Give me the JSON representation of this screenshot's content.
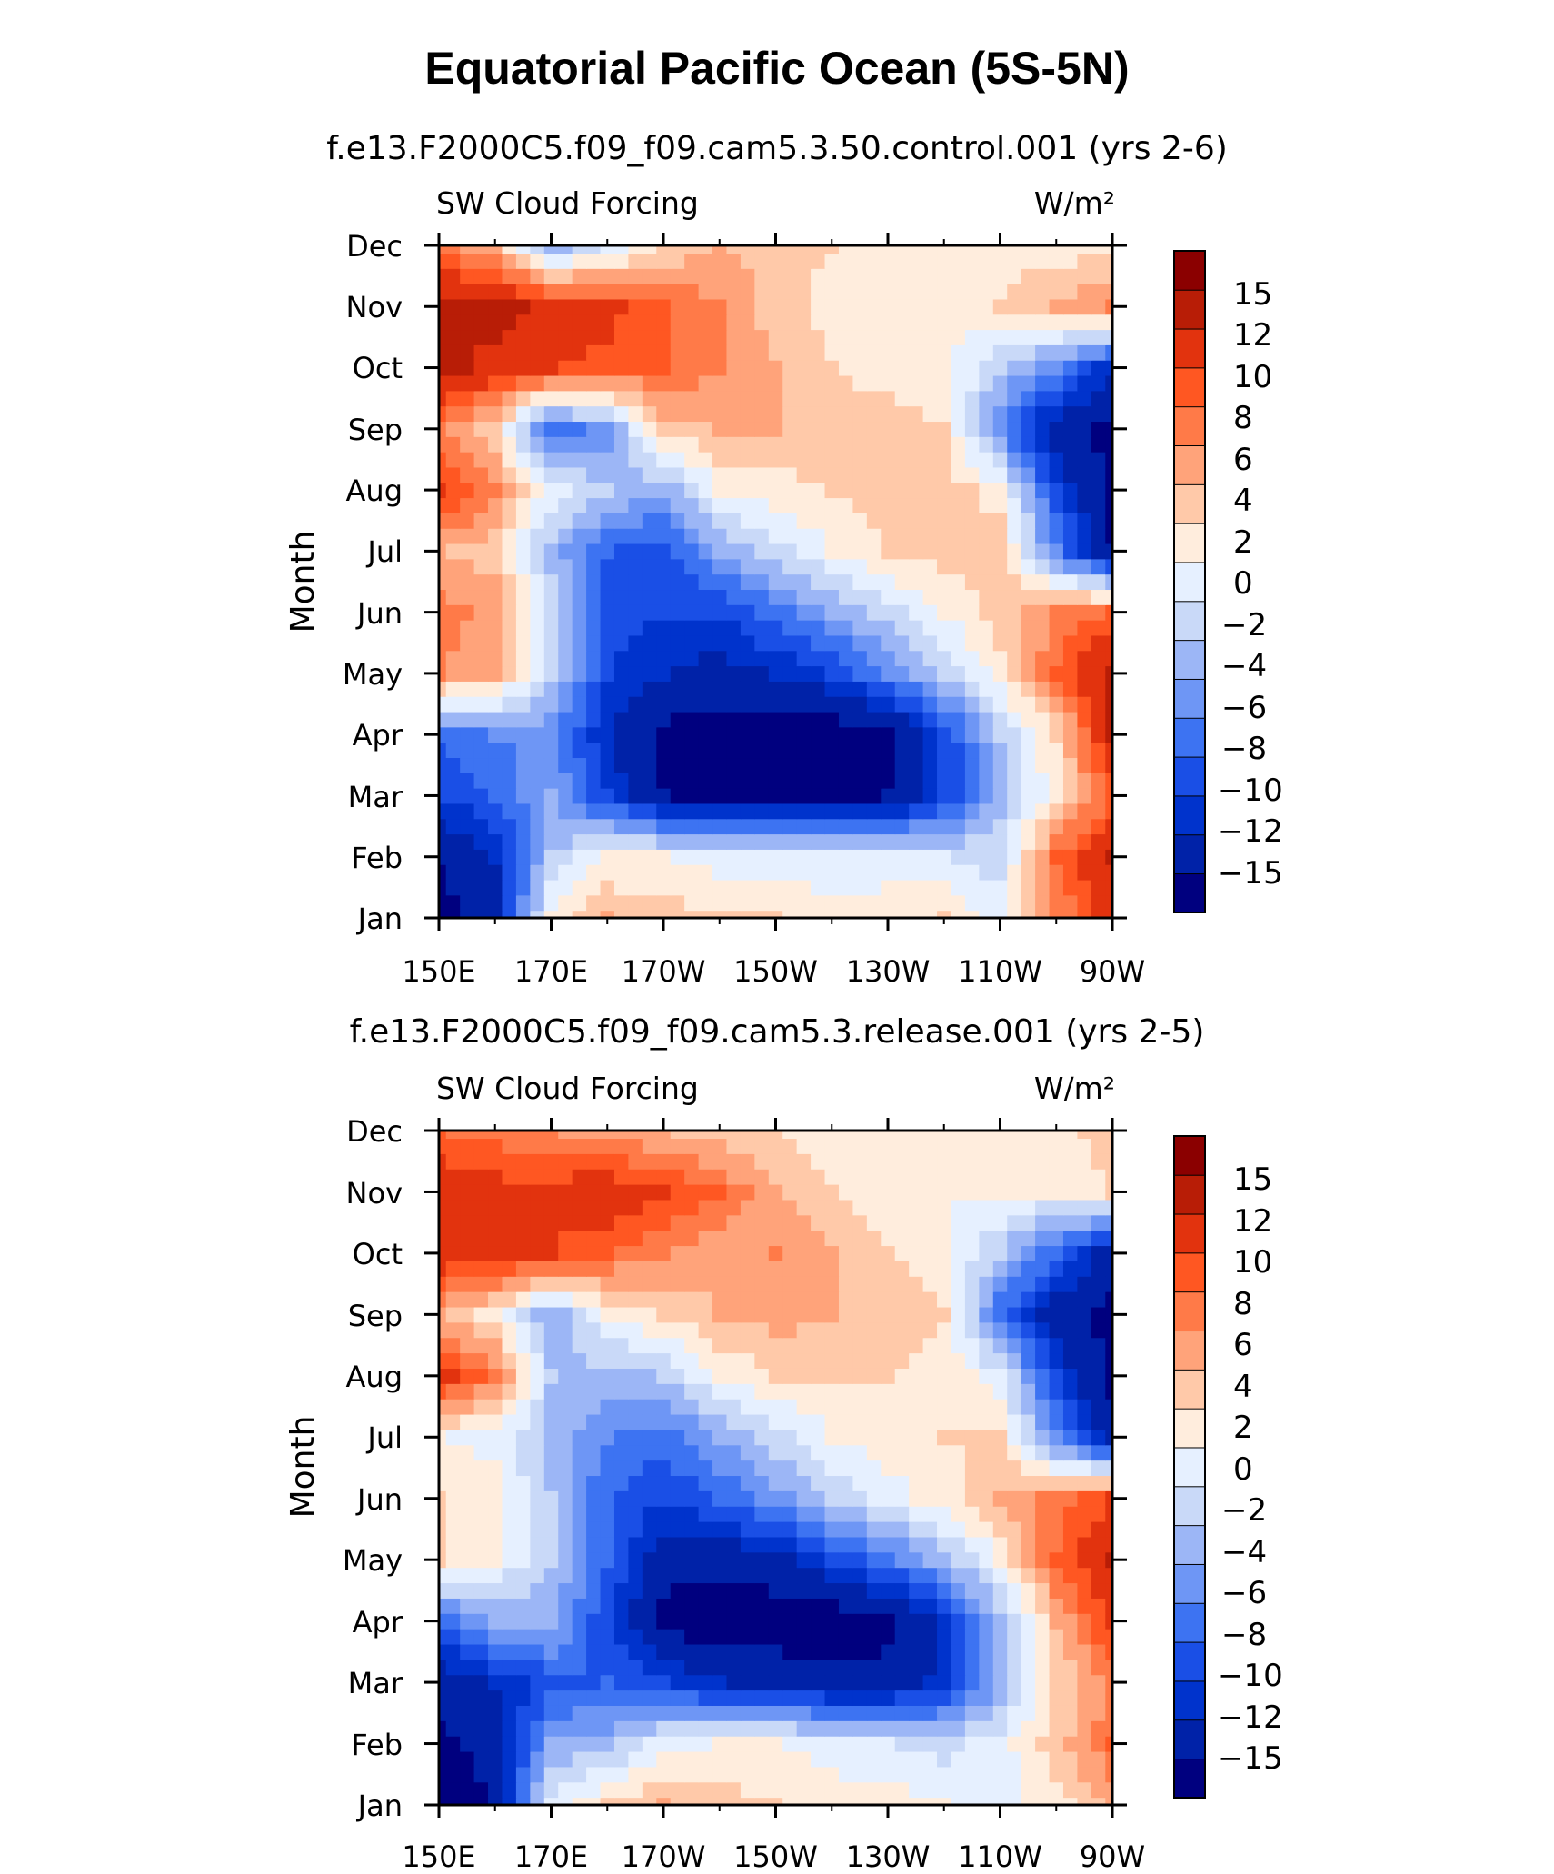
{
  "title": "Equatorial Pacific Ocean (5S-5N)",
  "colors": {
    "levels": [
      "#00007F",
      "#0022A8",
      "#0033CC",
      "#1A4FE6",
      "#3D73F2",
      "#6E96F5",
      "#9CB6F6",
      "#C9D9F8",
      "#E6F0FF",
      "#FFEDDD",
      "#FFC9A9",
      "#FFA37A",
      "#FF7A48",
      "#FF5722",
      "#E2330E",
      "#B81D06",
      "#8B0000"
    ],
    "axis": "#000000"
  },
  "chart_data": [
    {
      "type": "heatmap",
      "subtitle": "f.e13.F2000C5.f09_f09.cam5.3.50.control.001 (yrs 2-6)",
      "left_label": "SW Cloud Forcing",
      "right_label": "W/m²",
      "ylabel": "Month",
      "x_ticks": [
        "150E",
        "170E",
        "170W",
        "150W",
        "130W",
        "110W",
        "90W"
      ],
      "y_ticks": [
        "Jan",
        "Feb",
        "Mar",
        "Apr",
        "May",
        "Jun",
        "Jul",
        "Aug",
        "Sep",
        "Oct",
        "Nov",
        "Dec"
      ],
      "colorbar_labels": [
        "15",
        "12",
        "10",
        "8",
        "6",
        "4",
        "2",
        "0",
        "−2",
        "−4",
        "−6",
        "−8",
        "−10",
        "−12",
        "−15"
      ],
      "longitudes": [
        150,
        160,
        170,
        180,
        190,
        200,
        210,
        220,
        230,
        240,
        250,
        260,
        270
      ],
      "values": [
        [
          -16,
          -14,
          3,
          6,
          5,
          4,
          4,
          3,
          3,
          4,
          1,
          8,
          14
        ],
        [
          -15,
          -12,
          -2,
          2,
          2,
          1,
          1,
          0,
          1,
          0,
          -1,
          10,
          15
        ],
        [
          -10,
          -8,
          -4,
          -10,
          -15,
          -16,
          -16,
          -16,
          -15,
          -10,
          -3,
          3,
          10
        ],
        [
          -8,
          -6,
          -5,
          -12,
          -16,
          -17,
          -17,
          -17,
          -16,
          -10,
          -2,
          4,
          15
        ],
        [
          8,
          6,
          -2,
          -10,
          -12,
          -13,
          -12,
          -10,
          -6,
          -2,
          3,
          10,
          16
        ],
        [
          9,
          7,
          -1,
          -9,
          -10,
          -10,
          -7,
          -4,
          -1,
          2,
          5,
          8,
          10
        ],
        [
          6,
          5,
          -3,
          -8,
          -9,
          -4,
          -1,
          2,
          4,
          5,
          5,
          -6,
          -15
        ],
        [
          13,
          8,
          1,
          -2,
          -4,
          2,
          3,
          4,
          5,
          5,
          3,
          -10,
          -16
        ],
        [
          8,
          4,
          -8,
          -5,
          5,
          6,
          6,
          5,
          5,
          4,
          -6,
          -14,
          -16
        ],
        [
          16,
          14,
          12,
          11,
          10,
          8,
          6,
          4,
          3,
          3,
          -2,
          -6,
          -12
        ],
        [
          16,
          16,
          14,
          13,
          10,
          8,
          5,
          3,
          2,
          2,
          4,
          6,
          8
        ],
        [
          9,
          6,
          -3,
          0,
          4,
          6,
          5,
          4,
          3,
          3,
          3,
          3,
          3
        ]
      ]
    },
    {
      "type": "heatmap",
      "subtitle": "f.e13.F2000C5.f09_f09.cam5.3.release.001 (yrs 2-5)",
      "left_label": "SW Cloud Forcing",
      "right_label": "W/m²",
      "ylabel": "Month",
      "x_ticks": [
        "150E",
        "170E",
        "170W",
        "150W",
        "130W",
        "110W",
        "90W"
      ],
      "y_ticks": [
        "Jan",
        "Feb",
        "Mar",
        "Apr",
        "May",
        "Jun",
        "Jul",
        "Aug",
        "Sep",
        "Oct",
        "Nov",
        "Dec"
      ],
      "colorbar_labels": [
        "15",
        "12",
        "10",
        "8",
        "6",
        "4",
        "2",
        "0",
        "−2",
        "−4",
        "−6",
        "−8",
        "−10",
        "−12",
        "−15"
      ],
      "longitudes": [
        150,
        160,
        170,
        180,
        190,
        200,
        210,
        220,
        230,
        240,
        250,
        260,
        270
      ],
      "values": [
        [
          -16,
          -15,
          1,
          4,
          6,
          5,
          4,
          3,
          3,
          2,
          1,
          3,
          6
        ],
        [
          -16,
          -14,
          -4,
          -3,
          1,
          2,
          2,
          1,
          0,
          -1,
          1,
          5,
          10
        ],
        [
          -14,
          -12,
          -9,
          -8,
          -10,
          -12,
          -13,
          -14,
          -14,
          -11,
          -4,
          4,
          8
        ],
        [
          -8,
          -4,
          -3,
          -10,
          -16,
          -17,
          -17,
          -17,
          -16,
          -12,
          -3,
          6,
          13
        ],
        [
          4,
          2,
          -2,
          -8,
          -14,
          -14,
          -13,
          -10,
          -7,
          -3,
          2,
          10,
          15
        ],
        [
          4,
          3,
          -2,
          -8,
          -10,
          -8,
          -5,
          -2,
          1,
          3,
          6,
          9,
          12
        ],
        [
          2,
          1,
          -3,
          -6,
          -7,
          -4,
          -1,
          2,
          3,
          4,
          4,
          -6,
          -14
        ],
        [
          13,
          9,
          -2,
          -3,
          -2,
          2,
          4,
          4,
          4,
          3,
          1,
          -10,
          -16
        ],
        [
          6,
          3,
          -4,
          2,
          4,
          6,
          7,
          6,
          5,
          4,
          -8,
          -14,
          -16
        ],
        [
          14,
          14,
          12,
          10,
          8,
          6,
          8,
          6,
          4,
          3,
          -2,
          -8,
          -14
        ],
        [
          14,
          13,
          13,
          14,
          12,
          10,
          6,
          4,
          3,
          2,
          2,
          2,
          4
        ],
        [
          10,
          9,
          8,
          7,
          6,
          5,
          4,
          3,
          2,
          2,
          2,
          3,
          5
        ]
      ]
    }
  ]
}
